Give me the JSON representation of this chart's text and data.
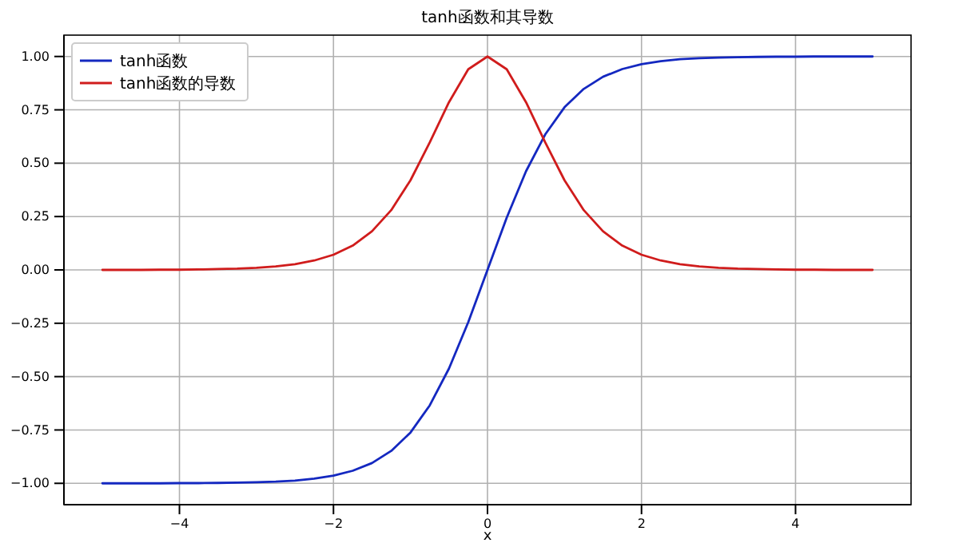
{
  "chart_data": {
    "type": "line",
    "title": "tanh函数和其导数",
    "xlabel": "x",
    "x": [
      -5,
      -4.75,
      -4.5,
      -4.25,
      -4,
      -3.75,
      -3.5,
      -3.25,
      -3,
      -2.75,
      -2.5,
      -2.25,
      -2,
      -1.75,
      -1.5,
      -1.25,
      -1,
      -0.75,
      -0.5,
      -0.25,
      0,
      0.25,
      0.5,
      0.75,
      1,
      1.25,
      1.5,
      1.75,
      2,
      2.25,
      2.5,
      2.75,
      3,
      3.25,
      3.5,
      3.75,
      4,
      4.25,
      4.5,
      4.75,
      5
    ],
    "series": [
      {
        "name": "tanh函数",
        "color": "#1428c0",
        "values": [
          -1.0,
          -1.0,
          -1.0,
          -1.0,
          -0.999,
          -0.999,
          -0.998,
          -0.997,
          -0.995,
          -0.992,
          -0.987,
          -0.978,
          -0.964,
          -0.941,
          -0.905,
          -0.848,
          -0.762,
          -0.635,
          -0.462,
          -0.245,
          0,
          0.245,
          0.462,
          0.635,
          0.762,
          0.848,
          0.905,
          0.941,
          0.964,
          0.978,
          0.987,
          0.992,
          0.995,
          0.997,
          0.998,
          0.999,
          0.999,
          1.0,
          1.0,
          1.0,
          1.0
        ]
      },
      {
        "name": "tanh函数的导数",
        "color": "#d01c1c",
        "values": [
          0.0,
          0.0,
          0.0,
          0.001,
          0.001,
          0.002,
          0.004,
          0.006,
          0.01,
          0.016,
          0.027,
          0.044,
          0.071,
          0.114,
          0.181,
          0.28,
          0.42,
          0.597,
          0.786,
          0.94,
          1.0,
          0.94,
          0.786,
          0.597,
          0.42,
          0.28,
          0.181,
          0.114,
          0.071,
          0.044,
          0.027,
          0.016,
          0.01,
          0.006,
          0.004,
          0.002,
          0.001,
          0.001,
          0.0,
          0.0,
          0.0
        ]
      }
    ],
    "xlim": [
      -5.5,
      5.5
    ],
    "xticks": [
      {
        "value": -4,
        "label": "−4"
      },
      {
        "value": -2,
        "label": "−2"
      },
      0,
      2,
      4
    ],
    "ylim": [
      -1.1,
      1.1
    ],
    "yticks": [
      {
        "value": -1,
        "label": "−1.00"
      },
      {
        "value": -0.75,
        "label": "−0.75"
      },
      {
        "value": -0.5,
        "label": "−0.50"
      },
      {
        "value": -0.25,
        "label": "−0.25"
      },
      {
        "value": 0,
        "label": "0.00"
      },
      {
        "value": 0.25,
        "label": "0.25"
      },
      {
        "value": 0.5,
        "label": "0.50"
      },
      {
        "value": 0.75,
        "label": "0.75"
      },
      {
        "value": 1,
        "label": "1.00"
      }
    ],
    "grid": true,
    "legend": "top left",
    "line_style": "solid"
  }
}
